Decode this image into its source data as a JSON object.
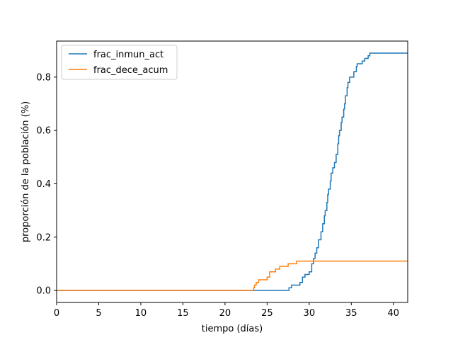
{
  "chart_data": {
    "type": "line",
    "title": "",
    "xlabel": "tiempo (días)",
    "ylabel": "proporción de la población (%)",
    "xlim": [
      0,
      41.7
    ],
    "ylim": [
      -0.045,
      0.935
    ],
    "xticks": [
      0,
      5,
      10,
      15,
      20,
      25,
      30,
      35,
      40
    ],
    "yticks": [
      0.0,
      0.2,
      0.4,
      0.6,
      0.8
    ],
    "xtick_labels": [
      "0",
      "5",
      "10",
      "15",
      "20",
      "25",
      "30",
      "35",
      "40"
    ],
    "ytick_labels": [
      "0.0",
      "0.2",
      "0.4",
      "0.6",
      "0.8"
    ],
    "grid": false,
    "legend_position": "upper-left",
    "series": [
      {
        "name": "frac_inmun_act",
        "color": "#1f77b4",
        "step": true,
        "points": [
          [
            0,
            0.0
          ],
          [
            27.5,
            0.0
          ],
          [
            27.6,
            0.01
          ],
          [
            27.9,
            0.02
          ],
          [
            28.9,
            0.03
          ],
          [
            29.2,
            0.05
          ],
          [
            29.5,
            0.06
          ],
          [
            30.0,
            0.07
          ],
          [
            30.3,
            0.1
          ],
          [
            30.5,
            0.12
          ],
          [
            30.7,
            0.14
          ],
          [
            30.9,
            0.16
          ],
          [
            31.1,
            0.19
          ],
          [
            31.4,
            0.22
          ],
          [
            31.6,
            0.25
          ],
          [
            31.8,
            0.28
          ],
          [
            31.9,
            0.3
          ],
          [
            32.1,
            0.33
          ],
          [
            32.2,
            0.36
          ],
          [
            32.3,
            0.38
          ],
          [
            32.5,
            0.41
          ],
          [
            32.6,
            0.44
          ],
          [
            32.8,
            0.46
          ],
          [
            33.0,
            0.48
          ],
          [
            33.2,
            0.51
          ],
          [
            33.4,
            0.55
          ],
          [
            33.5,
            0.58
          ],
          [
            33.6,
            0.6
          ],
          [
            33.8,
            0.63
          ],
          [
            33.9,
            0.65
          ],
          [
            34.1,
            0.68
          ],
          [
            34.2,
            0.7
          ],
          [
            34.3,
            0.73
          ],
          [
            34.5,
            0.76
          ],
          [
            34.6,
            0.78
          ],
          [
            34.8,
            0.8
          ],
          [
            35.3,
            0.82
          ],
          [
            35.6,
            0.84
          ],
          [
            35.7,
            0.85
          ],
          [
            36.3,
            0.86
          ],
          [
            36.6,
            0.87
          ],
          [
            37.0,
            0.88
          ],
          [
            37.2,
            0.89
          ],
          [
            41.7,
            0.89
          ]
        ]
      },
      {
        "name": "frac_dece_acum",
        "color": "#ff7f0e",
        "step": true,
        "points": [
          [
            0,
            0.0
          ],
          [
            23.2,
            0.0
          ],
          [
            23.4,
            0.01
          ],
          [
            23.5,
            0.02
          ],
          [
            23.7,
            0.03
          ],
          [
            24.0,
            0.04
          ],
          [
            25.0,
            0.05
          ],
          [
            25.3,
            0.07
          ],
          [
            26.0,
            0.08
          ],
          [
            26.5,
            0.09
          ],
          [
            27.5,
            0.1
          ],
          [
            28.5,
            0.11
          ],
          [
            41.7,
            0.11
          ]
        ]
      }
    ]
  }
}
